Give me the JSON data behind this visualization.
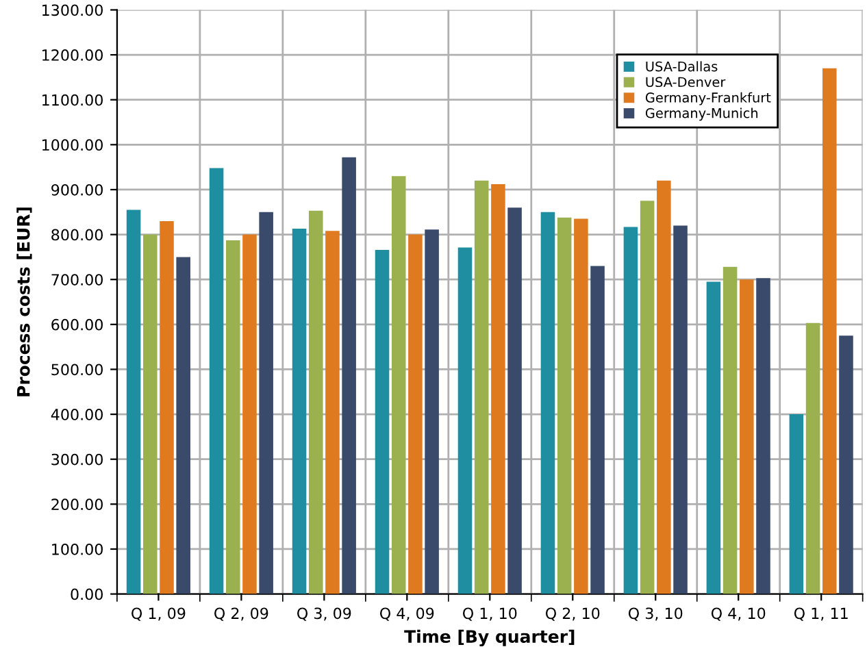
{
  "chart_data": {
    "type": "bar",
    "xlabel": "Time [By quarter]",
    "ylabel": "Process costs [EUR]",
    "categories": [
      "Q 1, 09",
      "Q 2, 09",
      "Q 3, 09",
      "Q 4, 09",
      "Q 1, 10",
      "Q 2, 10",
      "Q 3, 10",
      "Q 4, 10",
      "Q 1, 11"
    ],
    "series": [
      {
        "name": "USA-Dallas",
        "color": "#1f8ea0",
        "values": [
          855,
          948,
          813,
          766,
          771,
          850,
          817,
          695,
          400
        ]
      },
      {
        "name": "USA-Denver",
        "color": "#9bb150",
        "values": [
          800,
          787,
          853,
          930,
          920,
          838,
          875,
          728,
          603
        ]
      },
      {
        "name": "Germany-Frankfurt",
        "color": "#e07a1f",
        "values": [
          830,
          800,
          808,
          800,
          912,
          835,
          920,
          700,
          1170
        ]
      },
      {
        "name": "Germany-Munich",
        "color": "#3a4a6b",
        "values": [
          750,
          850,
          972,
          811,
          860,
          730,
          820,
          703,
          575
        ]
      }
    ],
    "ylim": [
      0,
      1300
    ],
    "yticks": [
      {
        "value": 0,
        "label": "0.00"
      },
      {
        "value": 100,
        "label": "100.00"
      },
      {
        "value": 200,
        "label": "200.00"
      },
      {
        "value": 300,
        "label": "300.00"
      },
      {
        "value": 400,
        "label": "400.00"
      },
      {
        "value": 500,
        "label": "500.00"
      },
      {
        "value": 600,
        "label": "600.00"
      },
      {
        "value": 700,
        "label": "700.00"
      },
      {
        "value": 800,
        "label": "800.00"
      },
      {
        "value": 900,
        "label": "900.00"
      },
      {
        "value": 1000,
        "label": "1000.00"
      },
      {
        "value": 1100,
        "label": "1100.00"
      },
      {
        "value": 1200,
        "label": "1200.00"
      },
      {
        "value": 1300,
        "label": "1300.00"
      }
    ],
    "grid": true,
    "legend": "top right"
  }
}
